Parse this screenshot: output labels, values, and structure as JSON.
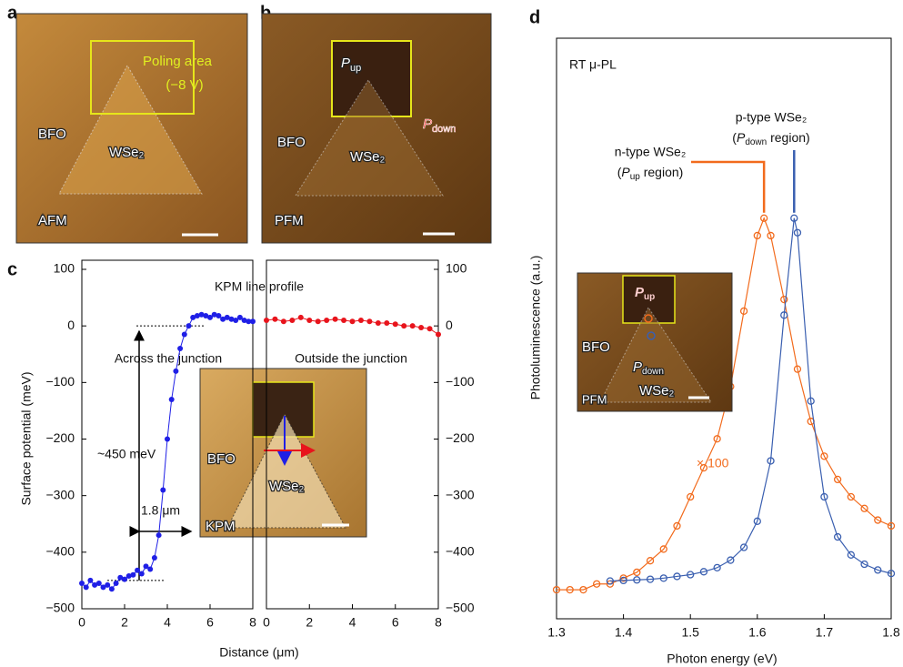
{
  "panel_a": {
    "label": "a",
    "poling_area": "Poling area",
    "voltage": "(−8 V)",
    "material_1": "BFO",
    "material_2": "WSe₂",
    "mode": "AFM"
  },
  "panel_b": {
    "label": "b",
    "p_up": {
      "symbol": "P",
      "sub": "up"
    },
    "p_down": {
      "symbol": "P",
      "sub": "down"
    },
    "material_1": "BFO",
    "material_2": "WSe₂",
    "mode": "PFM"
  },
  "chart_data": [
    {
      "type": "line",
      "panel_label": "c",
      "title": "KPM line profile",
      "x_label": "Distance (μm)",
      "y_label": "Surface potential (meV)",
      "x": [
        0,
        0.2,
        0.4,
        0.6,
        0.8,
        1.0,
        1.2,
        1.4,
        1.6,
        1.8,
        2.0,
        2.2,
        2.4,
        2.6,
        2.8,
        3.0,
        3.2,
        3.4,
        3.6,
        3.8,
        4.0,
        4.2,
        4.4,
        4.6,
        4.8,
        5.0,
        5.2,
        5.4,
        5.6,
        5.8,
        6.0,
        6.2,
        6.4,
        6.6,
        6.8,
        7.0,
        7.2,
        7.4,
        7.6,
        7.8,
        8.0
      ],
      "values": [
        -455,
        -462,
        -450,
        -458,
        -455,
        -462,
        -458,
        -465,
        -455,
        -445,
        -448,
        -442,
        -440,
        -432,
        -438,
        -425,
        -430,
        -410,
        -370,
        -290,
        -200,
        -130,
        -80,
        -40,
        -15,
        0,
        15,
        18,
        20,
        18,
        15,
        20,
        18,
        12,
        15,
        12,
        10,
        15,
        10,
        8,
        8
      ],
      "color": "#1f1fe6",
      "xlim": [
        0,
        8
      ],
      "xticks": [
        0,
        2,
        4,
        6,
        8
      ],
      "ylim": [
        -500,
        100
      ],
      "yticks": [
        {
          "value": -500,
          "label": "−500"
        },
        {
          "value": -400,
          "label": "−400"
        },
        {
          "value": -300,
          "label": "−300"
        },
        {
          "value": -200,
          "label": "−200"
        },
        {
          "value": -100,
          "label": "−100"
        },
        0,
        100
      ],
      "reference_lines": [
        0,
        -450
      ],
      "annotations": [
        "Across the junction",
        "~450 meV",
        "1.8 μm"
      ],
      "inset": {
        "material_1": "BFO",
        "material_2": "WSe₂",
        "mode": "KPM"
      }
    },
    {
      "type": "line",
      "x": [
        0,
        0.4,
        0.8,
        1.2,
        1.6,
        2.0,
        2.4,
        2.8,
        3.2,
        3.6,
        4.0,
        4.4,
        4.8,
        5.2,
        5.6,
        6.0,
        6.4,
        6.8,
        7.2,
        7.6,
        8.0
      ],
      "values": [
        10,
        12,
        8,
        10,
        15,
        10,
        8,
        10,
        12,
        10,
        8,
        10,
        8,
        5,
        5,
        3,
        0,
        0,
        -3,
        -5,
        -15
      ],
      "color": "#e8141c",
      "xlim": [
        0,
        8
      ],
      "xticks": [
        0,
        2,
        4,
        6,
        8
      ],
      "ylim": [
        -500,
        100
      ],
      "yticks": [
        {
          "value": -500,
          "label": "−500"
        },
        {
          "value": -400,
          "label": "−400"
        },
        {
          "value": -300,
          "label": "−300"
        },
        {
          "value": -200,
          "label": "−200"
        },
        {
          "value": -100,
          "label": "−100"
        },
        0,
        100
      ],
      "annotations": [
        "Outside the junction"
      ]
    },
    {
      "type": "line",
      "panel_label": "d",
      "x_label": "Photon energy (eV)",
      "y_label": "Photoluminescence (a.u.)",
      "xlim": [
        1.3,
        1.8
      ],
      "xticks": [
        1.3,
        1.4,
        1.5,
        1.6,
        1.7,
        1.8
      ],
      "ylim": [
        0,
        1
      ],
      "annotations": [
        "RT μ-PL",
        "× 100"
      ],
      "series": [
        {
          "name": "n-type WSe₂",
          "region": {
            "open": "(",
            "symbol": "P",
            "sub": "up",
            "close": " region)"
          },
          "color": "#f26b1d",
          "x": [
            1.3,
            1.32,
            1.34,
            1.36,
            1.38,
            1.4,
            1.42,
            1.44,
            1.46,
            1.48,
            1.5,
            1.52,
            1.54,
            1.56,
            1.58,
            1.6,
            1.61,
            1.62,
            1.64,
            1.66,
            1.68,
            1.7,
            1.72,
            1.74,
            1.76,
            1.78,
            1.8
          ],
          "values": [
            0.05,
            0.05,
            0.05,
            0.06,
            0.06,
            0.07,
            0.08,
            0.1,
            0.12,
            0.16,
            0.21,
            0.26,
            0.31,
            0.4,
            0.53,
            0.66,
            0.69,
            0.66,
            0.55,
            0.43,
            0.34,
            0.28,
            0.24,
            0.21,
            0.19,
            0.17,
            0.16
          ]
        },
        {
          "name": "p-type WSe₂",
          "region": {
            "open": "(",
            "symbol": "P",
            "sub": "down",
            "close": " region)"
          },
          "color": "#3a5fb0",
          "x": [
            1.38,
            1.4,
            1.42,
            1.44,
            1.46,
            1.48,
            1.5,
            1.52,
            1.54,
            1.56,
            1.58,
            1.6,
            1.62,
            1.64,
            1.655,
            1.66,
            1.68,
            1.7,
            1.72,
            1.74,
            1.76,
            1.78,
            1.8
          ],
          "values": [
            0.065,
            0.066,
            0.067,
            0.068,
            0.07,
            0.073,
            0.076,
            0.081,
            0.088,
            0.101,
            0.123,
            0.168,
            0.272,
            0.523,
            0.69,
            0.665,
            0.375,
            0.21,
            0.141,
            0.11,
            0.094,
            0.084,
            0.078
          ]
        }
      ],
      "inset": {
        "p_up": {
          "symbol": "P",
          "sub": "up"
        },
        "p_down": {
          "symbol": "P",
          "sub": "down"
        },
        "material_1": "BFO",
        "material_2": "WSe₂",
        "mode": "PFM"
      }
    }
  ]
}
